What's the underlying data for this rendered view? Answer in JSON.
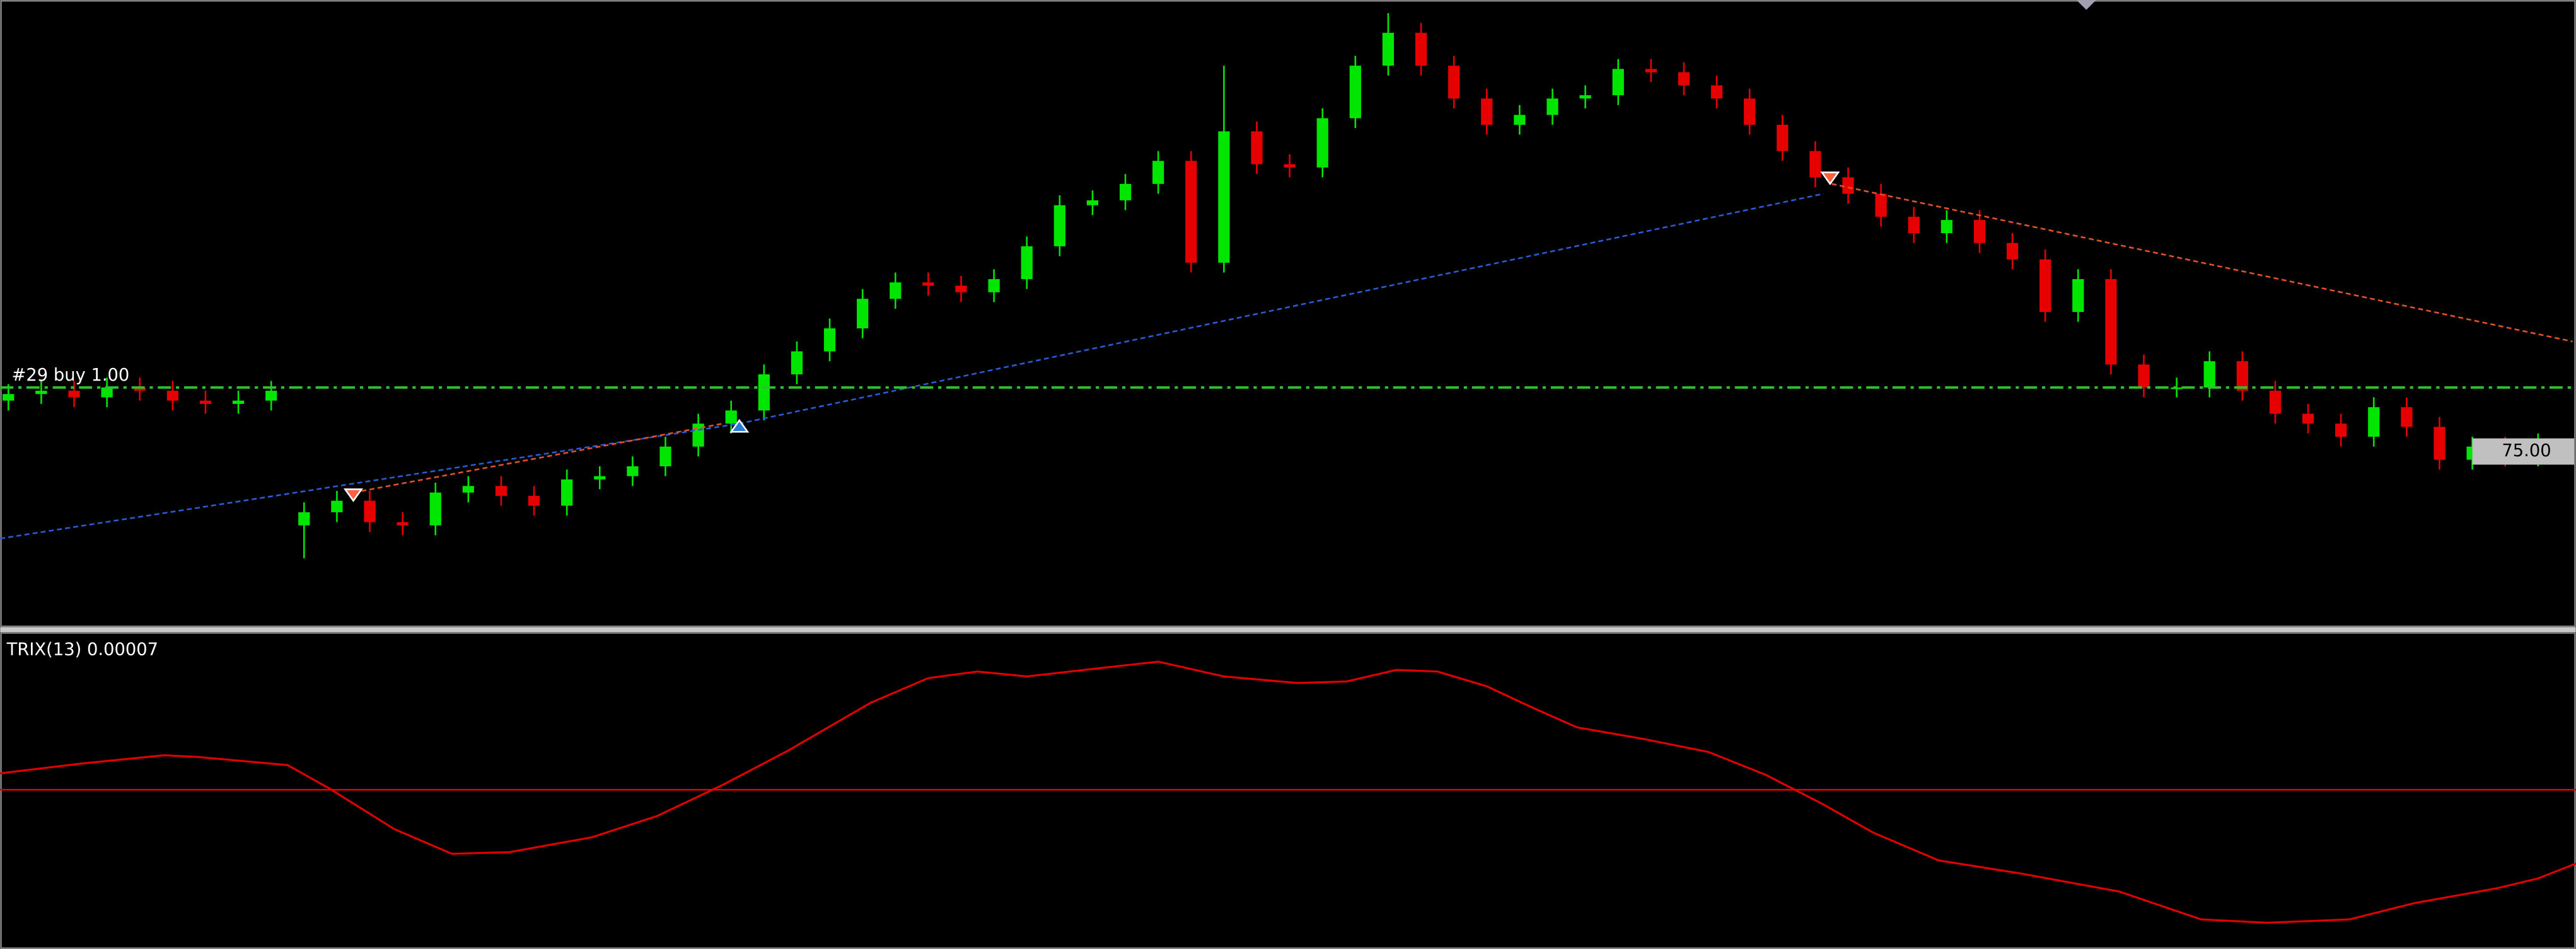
{
  "chart_data": {
    "type": "candlestick",
    "open": [
      78.1,
      78.5,
      78.7,
      78.3,
      78.9,
      78.7,
      78.1,
      77.9,
      78.1,
      70.5,
      71.3,
      72.0,
      70.7,
      70.5,
      72.5,
      72.9,
      72.3,
      71.7,
      73.3,
      73.5,
      74.1,
      75.3,
      76.7,
      77.5,
      79.7,
      81.1,
      82.5,
      84.3,
      85.3,
      85.1,
      84.7,
      85.5,
      87.5,
      90.0,
      90.3,
      91.3,
      92.7,
      86.5,
      94.5,
      92.5,
      92.3,
      95.3,
      98.5,
      100.5,
      98.5,
      96.5,
      94.9,
      95.5,
      96.5,
      96.7,
      98.3,
      98.1,
      97.3,
      96.5,
      94.9,
      93.3,
      91.7,
      90.7,
      89.3,
      88.3,
      89.1,
      87.7,
      86.7,
      83.5,
      85.5,
      80.3,
      78.9,
      78.9,
      80.5,
      78.7,
      77.3,
      76.7,
      75.9,
      77.7,
      76.5,
      74.5,
      75.3,
      74.7
    ],
    "high": [
      79.1,
      79.3,
      79.3,
      79.5,
      79.5,
      79.3,
      78.7,
      78.7,
      79.3,
      71.9,
      72.6,
      72.6,
      71.3,
      73.1,
      73.5,
      73.5,
      72.9,
      73.9,
      74.1,
      74.7,
      75.9,
      77.3,
      78.1,
      80.3,
      81.7,
      83.1,
      84.9,
      85.9,
      85.9,
      85.7,
      86.1,
      88.1,
      90.6,
      90.9,
      91.9,
      93.3,
      93.3,
      98.5,
      95.1,
      93.1,
      95.9,
      99.1,
      101.7,
      101.1,
      99.1,
      97.1,
      96.1,
      97.1,
      97.3,
      98.9,
      98.9,
      98.7,
      97.9,
      97.1,
      95.5,
      93.9,
      92.3,
      91.3,
      89.9,
      89.7,
      89.7,
      88.3,
      87.3,
      86.1,
      86.1,
      80.9,
      79.5,
      81.1,
      81.1,
      79.3,
      77.9,
      77.3,
      78.3,
      78.3,
      77.1,
      75.9,
      75.9,
      76.1
    ],
    "low": [
      77.5,
      77.9,
      77.7,
      77.7,
      78.1,
      77.5,
      77.3,
      77.3,
      77.5,
      68.5,
      70.7,
      70.1,
      69.9,
      69.9,
      71.9,
      71.7,
      71.1,
      71.1,
      72.7,
      72.9,
      73.5,
      74.7,
      76.1,
      76.9,
      79.1,
      80.5,
      81.9,
      83.7,
      84.5,
      84.1,
      84.1,
      84.9,
      86.9,
      89.4,
      89.7,
      90.7,
      85.9,
      85.9,
      91.9,
      91.7,
      91.7,
      94.7,
      97.9,
      97.9,
      95.9,
      94.3,
      94.3,
      94.9,
      95.9,
      96.1,
      97.5,
      96.7,
      95.9,
      94.3,
      92.7,
      91.1,
      90.1,
      88.7,
      87.7,
      87.7,
      87.1,
      86.1,
      82.9,
      82.9,
      79.7,
      78.3,
      78.3,
      78.3,
      78.1,
      76.7,
      76.1,
      75.3,
      75.3,
      75.9,
      73.9,
      73.9,
      74.1,
      74.1
    ],
    "close": [
      78.5,
      78.7,
      78.3,
      78.9,
      78.7,
      78.1,
      77.9,
      78.1,
      78.7,
      71.3,
      72.0,
      70.7,
      70.5,
      72.5,
      72.9,
      72.3,
      71.7,
      73.3,
      73.5,
      74.1,
      75.3,
      76.7,
      77.5,
      79.7,
      81.1,
      82.5,
      84.3,
      85.3,
      85.1,
      84.7,
      85.5,
      87.5,
      90.0,
      90.3,
      91.3,
      92.7,
      86.5,
      94.5,
      92.5,
      92.3,
      95.3,
      98.5,
      100.5,
      98.5,
      96.5,
      94.9,
      95.5,
      96.5,
      96.7,
      98.3,
      98.1,
      97.3,
      96.5,
      94.9,
      93.3,
      91.7,
      90.7,
      89.3,
      88.3,
      89.1,
      87.7,
      86.7,
      83.5,
      85.5,
      80.3,
      78.9,
      78.9,
      80.5,
      78.7,
      77.3,
      76.7,
      75.9,
      77.7,
      76.5,
      74.5,
      75.3,
      74.7,
      75.5
    ],
    "up_color": "#00e600",
    "down_color": "#e60000",
    "ylim": [
      64.3,
      102.5
    ],
    "buy_line": {
      "label": "#29 buy 1.00",
      "value": 78.9,
      "color": "#2fbf2f"
    },
    "price_tag": {
      "value": 75,
      "label": "75.00"
    },
    "indicator": {
      "label": "TRIX(13) 0.00007",
      "color": "#e00000"
    }
  }
}
